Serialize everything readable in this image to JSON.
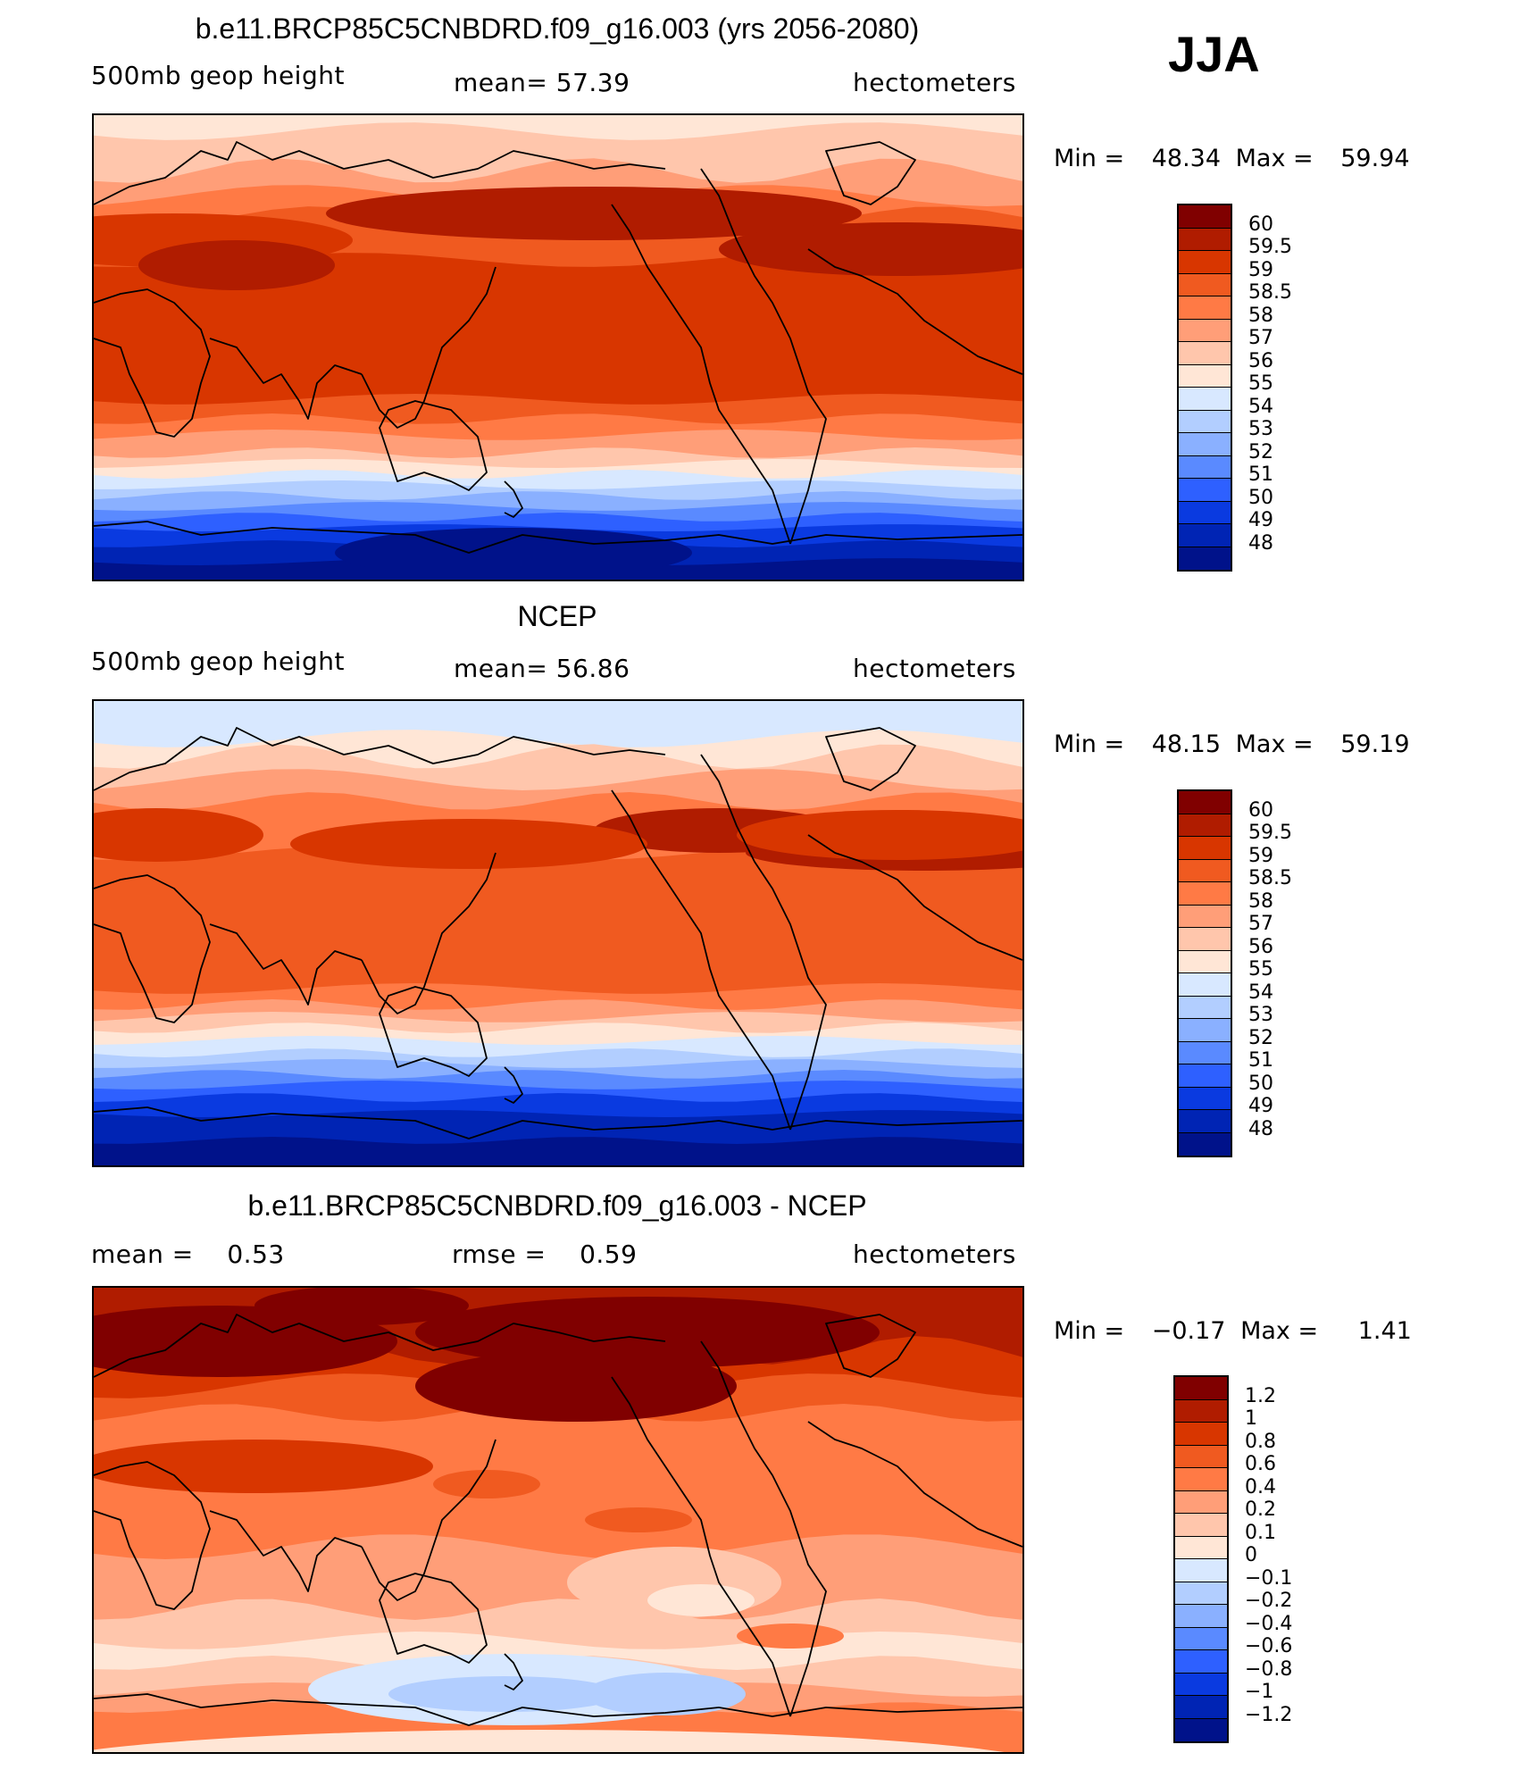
{
  "season": "JJA",
  "panels": [
    {
      "title": "b.e11.BRCP85C5CNBDRD.f09_g16.003 (yrs 2056-2080)",
      "left_label": "500mb geop height",
      "center_label": "mean=   57.39",
      "right_label": "hectometers",
      "min_text": "Min =",
      "min_value": "48.34",
      "max_text": "Max =",
      "max_value": "59.94",
      "colorbar_labels": [
        "60",
        "59.5",
        "59",
        "58.5",
        "58",
        "57",
        "56",
        "55",
        "54",
        "53",
        "52",
        "51",
        "50",
        "49",
        "48"
      ]
    },
    {
      "title": "NCEP",
      "left_label": "500mb geop height",
      "center_label": "mean=   56.86",
      "right_label": "hectometers",
      "min_text": "Min =",
      "min_value": "48.15",
      "max_text": "Max =",
      "max_value": "59.19",
      "colorbar_labels": [
        "60",
        "59.5",
        "59",
        "58.5",
        "58",
        "57",
        "56",
        "55",
        "54",
        "53",
        "52",
        "51",
        "50",
        "49",
        "48"
      ]
    },
    {
      "title": "b.e11.BRCP85C5CNBDRD.f09_g16.003 - NCEP",
      "left_label": "mean =    0.53",
      "center_label": "rmse =    0.59",
      "right_label": "hectometers",
      "min_text": "Min =",
      "min_value": "−0.17",
      "max_text": "Max =",
      "max_value": "1.41",
      "colorbar_labels": [
        "1.2",
        "1",
        "0.8",
        "0.6",
        "0.4",
        "0.2",
        "0.1",
        "0",
        "−0.1",
        "−0.2",
        "−0.4",
        "−0.6",
        "−0.8",
        "−1",
        "−1.2"
      ]
    }
  ],
  "colors": {
    "scale": [
      "#800000",
      "#b01c00",
      "#d83600",
      "#f05a20",
      "#ff7a45",
      "#ff9e78",
      "#ffc6ac",
      "#ffe6d6",
      "#d8e8ff",
      "#b2ceff",
      "#8ab0ff",
      "#5a8aff",
      "#2e60ff",
      "#0a3ae0",
      "#0024b4",
      "#00128a"
    ]
  }
}
